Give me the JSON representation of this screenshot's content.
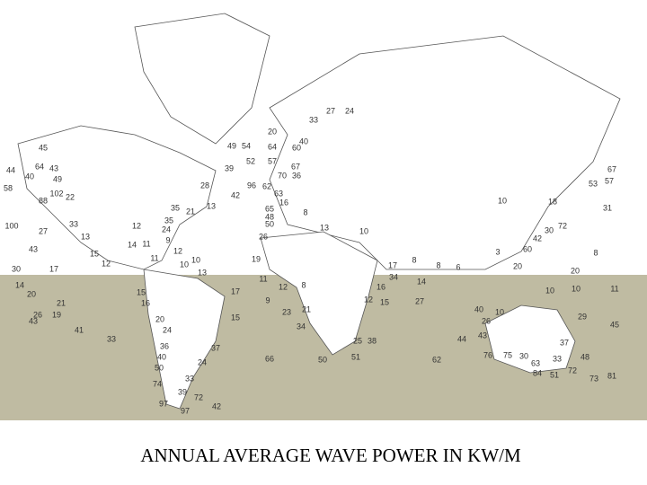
{
  "caption": "ANNUAL AVERAGE WAVE POWER IN KW/M",
  "labels": [
    27,
    24,
    33,
    20,
    40,
    49,
    54,
    64,
    60,
    45,
    44,
    64,
    43,
    40,
    58,
    49,
    102,
    22,
    88,
    39,
    52,
    57,
    67,
    70,
    36,
    28,
    42,
    96,
    62,
    63,
    16,
    35,
    21,
    13,
    65,
    48,
    50,
    8,
    100,
    27,
    33,
    13,
    12,
    35,
    24,
    9,
    14,
    11,
    43,
    15,
    12,
    11,
    10,
    10,
    12,
    26,
    19,
    13,
    10,
    17,
    8,
    8,
    6,
    3,
    20,
    67,
    53,
    57,
    31,
    10,
    18,
    72,
    30,
    42,
    8,
    20,
    60,
    30,
    17,
    13,
    11,
    12,
    8,
    34,
    14,
    16,
    14,
    20,
    21,
    26,
    19,
    43,
    15,
    16,
    17,
    9,
    12,
    15,
    27,
    10,
    10,
    11,
    40,
    10,
    26,
    43,
    44,
    29,
    45,
    20,
    23,
    21,
    24,
    15,
    34,
    41,
    33,
    25,
    38,
    36,
    40,
    37,
    76,
    75,
    30,
    50,
    24,
    66,
    50,
    51,
    62,
    33,
    48,
    63,
    84,
    51,
    72,
    73,
    81,
    33,
    74,
    39,
    72,
    97,
    97,
    42,
    37
  ]
}
